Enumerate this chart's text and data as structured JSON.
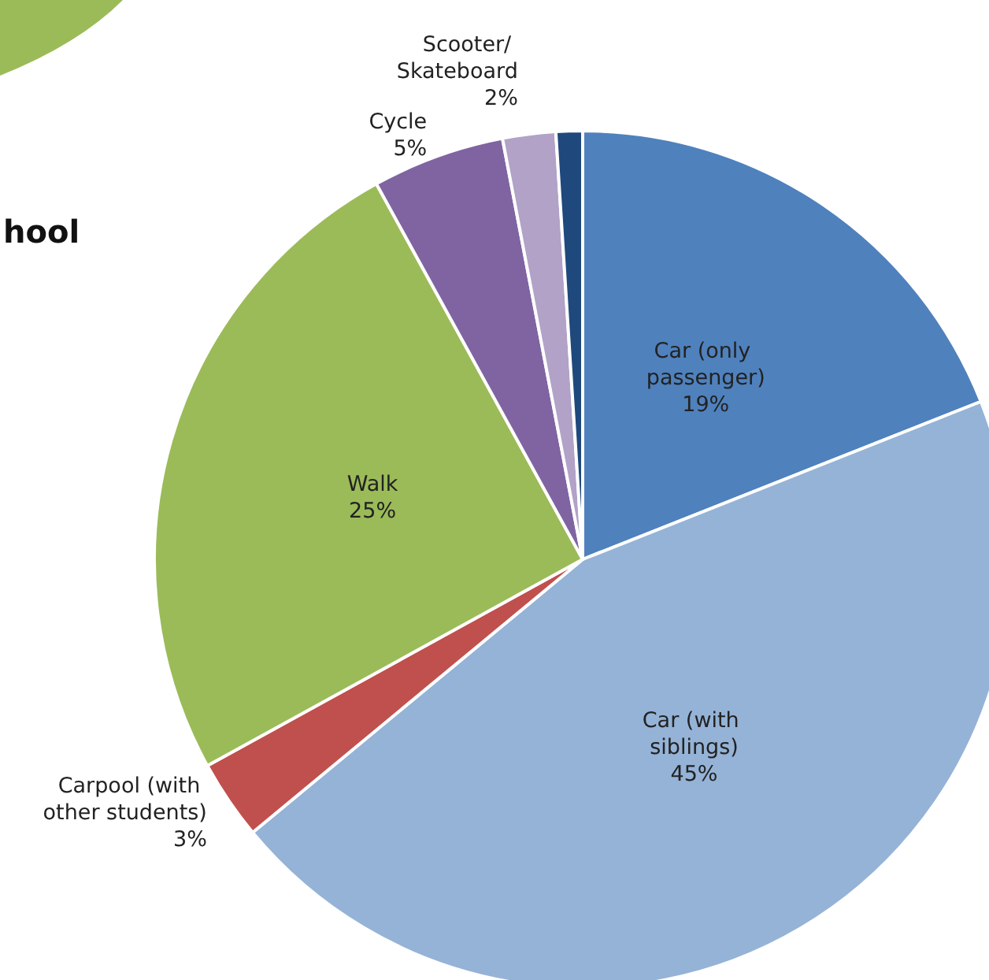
{
  "chart_data": {
    "type": "pie",
    "title": "hool",
    "categories": [
      "Car (only passenger)",
      "Car (with siblings)",
      "Carpool (with other students)",
      "Walk",
      "Cycle",
      "Scooter/ Skateboard",
      null
    ],
    "values": [
      19,
      45,
      3,
      25,
      5,
      2,
      1
    ],
    "value_labels": [
      "19%",
      "45%",
      "3%",
      "25%",
      "5%",
      "2%",
      null
    ],
    "colors": [
      "#4f81bd",
      "#95b3d7",
      "#c0504d",
      "#9bbb59",
      "#8064a2",
      "#b2a2c7",
      "#1f497d"
    ]
  }
}
